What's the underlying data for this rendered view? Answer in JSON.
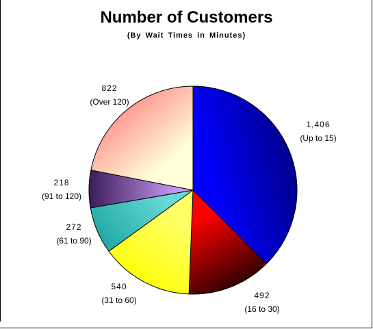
{
  "chart_data": {
    "type": "pie",
    "title": "Number of Customers",
    "subtitle": "(By Wait Times in Minutes)",
    "slices": [
      {
        "label": "(Up to 15)",
        "value": 1406,
        "value_label": "1,406",
        "color": "#0000ff",
        "color_dark": "#00008a"
      },
      {
        "label": "(16 to 30)",
        "value": 492,
        "value_label": "492",
        "color": "#ff0000",
        "color_dark": "#200000"
      },
      {
        "label": "(31 to 60)",
        "value": 540,
        "value_label": "540",
        "color": "#ffff66",
        "color_dark": "#ffff00"
      },
      {
        "label": "(61 to 90)",
        "value": 272,
        "value_label": "272",
        "color": "#66d9d6",
        "color_dark": "#22aaa6"
      },
      {
        "label": "(91 to 120)",
        "value": 218,
        "value_label": "218",
        "color": "#c89bf5",
        "color_dark": "#3a1c5a"
      },
      {
        "label": "(Over 120)",
        "value": 822,
        "value_label": "822",
        "color": "#ffffd8",
        "color_dark": "#ff8080"
      }
    ],
    "legend": "none"
  }
}
